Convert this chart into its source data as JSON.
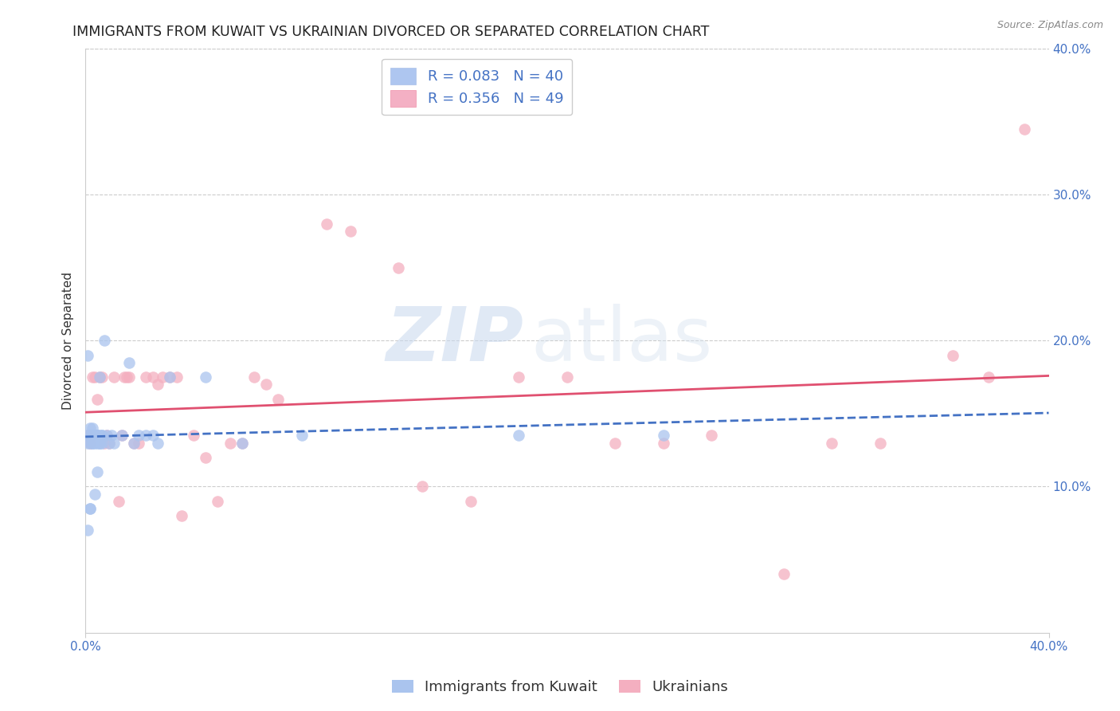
{
  "title": "IMMIGRANTS FROM KUWAIT VS UKRAINIAN DIVORCED OR SEPARATED CORRELATION CHART",
  "source": "Source: ZipAtlas.com",
  "ylabel": "Divorced or Separated",
  "x_min": 0.0,
  "x_max": 0.4,
  "y_min": 0.0,
  "y_max": 0.4,
  "y_ticks_right": [
    0.1,
    0.2,
    0.3,
    0.4
  ],
  "grid_color": "#cccccc",
  "background_color": "#ffffff",
  "watermark_zip": "ZIP",
  "watermark_atlas": "atlas",
  "legend_box_color_blue": "#aec6f0",
  "legend_box_color_pink": "#f4b0c4",
  "legend_text_color": "#4472c4",
  "kuwait_scatter_x": [
    0.001,
    0.001,
    0.002,
    0.002,
    0.002,
    0.003,
    0.003,
    0.003,
    0.003,
    0.004,
    0.004,
    0.004,
    0.004,
    0.005,
    0.005,
    0.005,
    0.005,
    0.006,
    0.006,
    0.006,
    0.007,
    0.007,
    0.008,
    0.009,
    0.01,
    0.011,
    0.012,
    0.015,
    0.018,
    0.02,
    0.022,
    0.025,
    0.028,
    0.03,
    0.035,
    0.05,
    0.065,
    0.09,
    0.18,
    0.24
  ],
  "kuwait_scatter_y": [
    0.135,
    0.13,
    0.14,
    0.135,
    0.13,
    0.135,
    0.135,
    0.14,
    0.135,
    0.135,
    0.135,
    0.13,
    0.135,
    0.135,
    0.13,
    0.135,
    0.135,
    0.13,
    0.175,
    0.135,
    0.135,
    0.135,
    0.2,
    0.135,
    0.13,
    0.135,
    0.13,
    0.135,
    0.185,
    0.13,
    0.135,
    0.135,
    0.135,
    0.13,
    0.175,
    0.175,
    0.13,
    0.135,
    0.135,
    0.135
  ],
  "ukraine_scatter_x": [
    0.001,
    0.002,
    0.003,
    0.004,
    0.005,
    0.006,
    0.007,
    0.008,
    0.009,
    0.01,
    0.012,
    0.014,
    0.015,
    0.016,
    0.017,
    0.018,
    0.02,
    0.022,
    0.025,
    0.028,
    0.03,
    0.032,
    0.035,
    0.038,
    0.04,
    0.045,
    0.05,
    0.055,
    0.06,
    0.065,
    0.07,
    0.075,
    0.08,
    0.1,
    0.11,
    0.13,
    0.14,
    0.16,
    0.18,
    0.2,
    0.22,
    0.24,
    0.26,
    0.29,
    0.31,
    0.33,
    0.36,
    0.375,
    0.39
  ],
  "ukraine_scatter_y": [
    0.135,
    0.13,
    0.175,
    0.175,
    0.16,
    0.175,
    0.175,
    0.13,
    0.135,
    0.13,
    0.175,
    0.09,
    0.135,
    0.175,
    0.175,
    0.175,
    0.13,
    0.13,
    0.175,
    0.175,
    0.17,
    0.175,
    0.175,
    0.175,
    0.08,
    0.135,
    0.12,
    0.09,
    0.13,
    0.13,
    0.175,
    0.17,
    0.16,
    0.28,
    0.275,
    0.25,
    0.1,
    0.09,
    0.175,
    0.175,
    0.13,
    0.13,
    0.135,
    0.04,
    0.13,
    0.13,
    0.19,
    0.175,
    0.345
  ],
  "kuwait_line_color": "#4472c4",
  "ukraine_line_color": "#e05070",
  "scatter_blue": "#aac4ee",
  "scatter_pink": "#f4afc0",
  "title_color": "#222222",
  "axis_label_color": "#333333",
  "right_axis_color": "#4472c4",
  "title_fontsize": 12.5,
  "axis_label_fontsize": 11,
  "tick_fontsize": 11,
  "legend_fontsize": 13,
  "kuwait_extra_x": [
    0.001,
    0.001,
    0.002,
    0.002,
    0.003,
    0.003,
    0.004,
    0.005,
    0.006,
    0.007
  ],
  "kuwait_extra_y": [
    0.19,
    0.07,
    0.085,
    0.085,
    0.13,
    0.13,
    0.095,
    0.11,
    0.13,
    0.13
  ]
}
